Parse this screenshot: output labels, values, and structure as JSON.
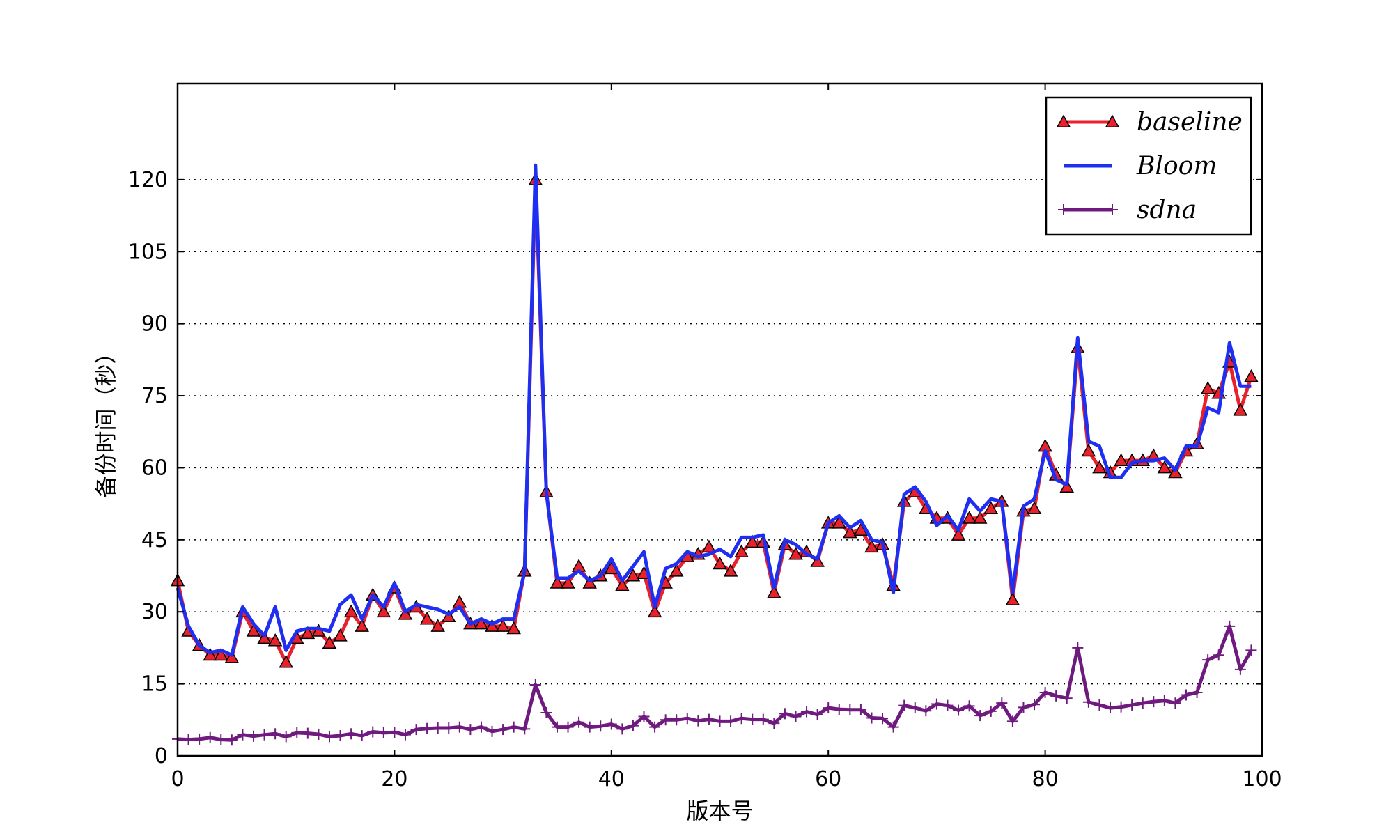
{
  "chart_data": {
    "type": "line",
    "title": "",
    "xlabel": "版本号",
    "ylabel": "备份时间（秒）",
    "xlim": [
      0,
      100
    ],
    "ylim": [
      0,
      140
    ],
    "xticks": [
      0,
      20,
      40,
      60,
      80,
      100
    ],
    "yticks": [
      0,
      15,
      30,
      45,
      60,
      75,
      90,
      105,
      120
    ],
    "grid": "horizontal-dotted",
    "legend_position": "top-right",
    "x": [
      0,
      1,
      2,
      3,
      4,
      5,
      6,
      7,
      8,
      9,
      10,
      11,
      12,
      13,
      14,
      15,
      16,
      17,
      18,
      19,
      20,
      21,
      22,
      23,
      24,
      25,
      26,
      27,
      28,
      29,
      30,
      31,
      32,
      33,
      34,
      35,
      36,
      37,
      38,
      39,
      40,
      41,
      42,
      43,
      44,
      45,
      46,
      47,
      48,
      49,
      50,
      51,
      52,
      53,
      54,
      55,
      56,
      57,
      58,
      59,
      60,
      61,
      62,
      63,
      64,
      65,
      66,
      67,
      68,
      69,
      70,
      71,
      72,
      73,
      74,
      75,
      76,
      77,
      78,
      79,
      80,
      81,
      82,
      83,
      84,
      85,
      86,
      87,
      88,
      89,
      90,
      91,
      92,
      93,
      94,
      95,
      96,
      97,
      98,
      99
    ],
    "series": [
      {
        "name": "baseline",
        "color": "#e8212b",
        "marker": "triangle",
        "values": [
          36.5,
          26,
          23,
          21,
          21,
          20.5,
          30,
          26,
          24.5,
          24,
          19.5,
          24.5,
          25.5,
          26,
          23.5,
          25,
          30,
          27,
          33.5,
          30,
          35,
          29.5,
          31,
          28.5,
          27,
          29,
          32,
          27.5,
          27.5,
          27,
          27,
          26.5,
          38.5,
          120,
          55,
          36,
          36,
          39.5,
          36,
          37.5,
          39,
          35.5,
          37.5,
          38,
          30,
          36,
          38.5,
          41.5,
          42,
          43.5,
          40,
          38.5,
          42.5,
          44.5,
          44.5,
          34,
          44,
          42,
          42.5,
          40.5,
          48.5,
          48.5,
          46.5,
          47,
          43.5,
          44,
          35.5,
          53,
          55,
          51.5,
          49.5,
          49.5,
          46,
          49.5,
          49.5,
          51.5,
          53,
          32.5,
          51,
          51.5,
          64.5,
          58.5,
          56,
          85,
          63.5,
          60,
          59,
          61.5,
          61.5,
          61.5,
          62.5,
          60,
          59,
          63.5,
          65,
          76.5,
          75.5,
          82,
          72,
          79
        ]
      },
      {
        "name": "Bloom",
        "color": "#1f2ff2",
        "marker": "none",
        "values": [
          35,
          27,
          23,
          21.5,
          22,
          21,
          31,
          27.5,
          25,
          31,
          22,
          26,
          26.5,
          26.5,
          26,
          31.5,
          33.5,
          28.5,
          33.5,
          31,
          36,
          30,
          31.5,
          31,
          30.5,
          29.5,
          31,
          27.5,
          28.5,
          27.5,
          28.5,
          28.5,
          38.5,
          123,
          55,
          37,
          37,
          38.5,
          36.5,
          37.5,
          41,
          36.5,
          39.5,
          42.5,
          31,
          39,
          40,
          42.5,
          41.5,
          42,
          43,
          41.5,
          45.5,
          45.5,
          46,
          35,
          45,
          44,
          42,
          41,
          48.5,
          50,
          47.5,
          49,
          45,
          44.5,
          34,
          54.5,
          56,
          53,
          48,
          50,
          47,
          53.5,
          51,
          53.5,
          53,
          34,
          52,
          53.5,
          63.5,
          57.5,
          56.5,
          87,
          65.5,
          64.5,
          58,
          58,
          61,
          61.5,
          61.5,
          62,
          59.5,
          64.5,
          64.5,
          72.5,
          71.5,
          86,
          77,
          77
        ]
      },
      {
        "name": "sdna",
        "color": "#6e1a7e",
        "marker": "plus",
        "values": [
          3.5,
          3.4,
          3.5,
          3.8,
          3.4,
          3.3,
          4.4,
          4.1,
          4.4,
          4.6,
          4,
          4.8,
          4.7,
          4.5,
          4,
          4.2,
          4.6,
          4.2,
          5,
          4.8,
          4.9,
          4.4,
          5.5,
          5.7,
          5.8,
          5.8,
          6,
          5.5,
          6,
          5.1,
          5.5,
          6,
          5.6,
          14.8,
          9,
          6,
          6,
          7,
          6,
          6.2,
          6.6,
          5.6,
          6.3,
          8.2,
          6,
          7.5,
          7.5,
          7.8,
          7.3,
          7.6,
          7.2,
          7.2,
          7.8,
          7.6,
          7.6,
          6.8,
          8.8,
          8.2,
          9.2,
          8.6,
          10,
          9.7,
          9.6,
          9.6,
          7.9,
          7.8,
          6,
          10.5,
          10,
          9.4,
          10.8,
          10.5,
          9.5,
          10.4,
          8.4,
          9.3,
          11,
          7.2,
          10.1,
          10.7,
          13.2,
          12.5,
          12,
          22.5,
          11.2,
          10.6,
          10,
          10.2,
          10.6,
          11,
          11.3,
          11.5,
          11,
          12.7,
          13.2,
          20,
          21,
          27,
          18,
          22
        ]
      }
    ]
  }
}
